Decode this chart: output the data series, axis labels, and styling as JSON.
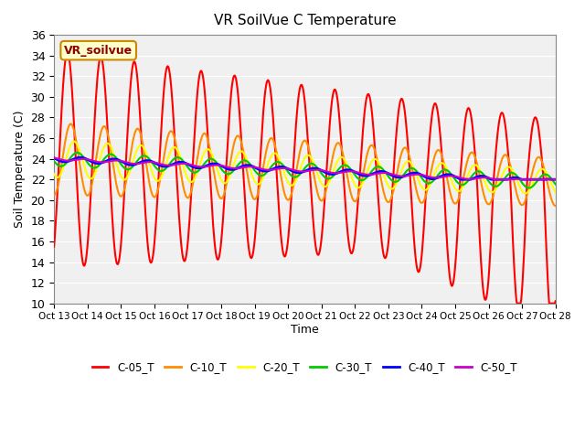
{
  "title": "VR SoilVue C Temperature",
  "xlabel": "Time",
  "ylabel": "Soil Temperature (C)",
  "ylim": [
    10,
    36
  ],
  "yticks": [
    10,
    12,
    14,
    16,
    18,
    20,
    22,
    24,
    26,
    28,
    30,
    32,
    34,
    36
  ],
  "xtick_labels": [
    "Oct 13",
    "Oct 14",
    "Oct 15",
    "Oct 16",
    "Oct 17",
    "Oct 18",
    "Oct 19",
    "Oct 20",
    "Oct 21",
    "Oct 22",
    "Oct 23",
    "Oct 24",
    "Oct 25",
    "Oct 26",
    "Oct 27",
    "Oct 28"
  ],
  "annotation": "VR_soilvue",
  "legend_labels": [
    "C-05_T",
    "C-10_T",
    "C-20_T",
    "C-30_T",
    "C-40_T",
    "C-50_T"
  ],
  "line_colors": [
    "#ff0000",
    "#ff8c00",
    "#ffff00",
    "#00cc00",
    "#0000ff",
    "#cc00cc"
  ],
  "line_widths": [
    1.5,
    1.5,
    1.5,
    1.5,
    2.0,
    1.5
  ],
  "plot_bg_color": "#f0f0f0",
  "n_points": 720,
  "days": 15
}
